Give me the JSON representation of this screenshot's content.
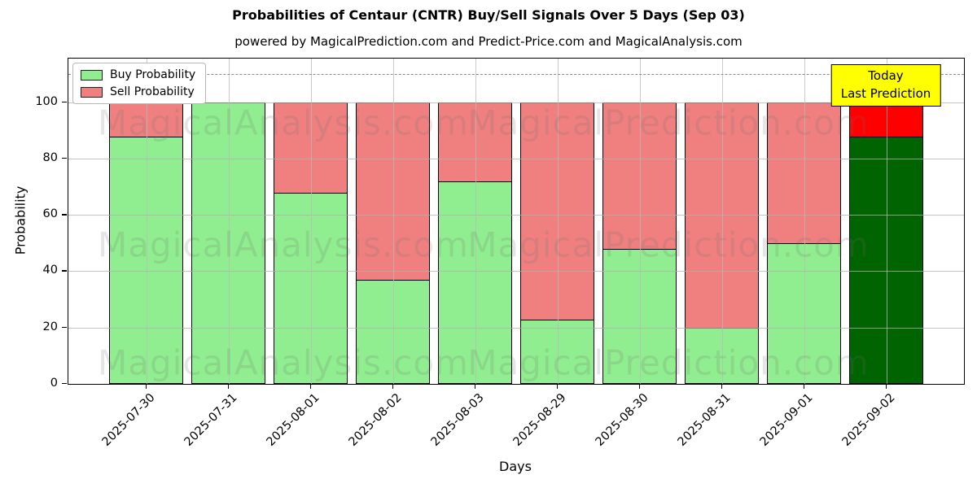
{
  "title": "Probabilities of Centaur (CNTR) Buy/Sell Signals Over 5 Days (Sep 03)",
  "subtitle": "powered by MagicalPrediction.com and Predict-Price.com and MagicalAnalysis.com",
  "watermarks": {
    "left_text": "MagicalAnalysis.com",
    "right_text": "MagicalPrediction.com"
  },
  "legend": {
    "items": [
      {
        "label": "Buy Probability",
        "color": "#90ee90"
      },
      {
        "label": "Sell Probability",
        "color": "#f08080"
      }
    ]
  },
  "annotation": {
    "line1": "Today",
    "line2": "Last Prediction",
    "bg_color": "#ffff00"
  },
  "axes": {
    "xlabel": "Days",
    "ylabel": "Probability",
    "yticks": [
      0,
      20,
      40,
      60,
      80,
      100
    ],
    "ylim": [
      0,
      115.5
    ],
    "dashed_line_y": 110,
    "grid": true
  },
  "chart_data": {
    "type": "bar",
    "stacked": true,
    "title": "Probabilities of Centaur (CNTR) Buy/Sell Signals Over 5 Days (Sep 03)",
    "xlabel": "Days",
    "ylabel": "Probability",
    "ylim": [
      0,
      115.5
    ],
    "legend_position": "upper left",
    "categories": [
      "2025-07-30",
      "2025-07-31",
      "2025-08-01",
      "2025-08-02",
      "2025-08-03",
      "2025-08-29",
      "2025-08-30",
      "2025-08-31",
      "2025-09-01",
      "2025-09-02"
    ],
    "series": [
      {
        "name": "Buy Probability",
        "color": "#90ee90",
        "values": [
          88,
          100,
          68,
          37,
          72,
          23,
          48,
          20,
          50,
          88
        ]
      },
      {
        "name": "Sell Probability",
        "color": "#f08080",
        "values": [
          12,
          0,
          32,
          63,
          28,
          77,
          52,
          80,
          50,
          12
        ]
      }
    ],
    "last_bar_highlight": {
      "buy_color": "#006400",
      "sell_color": "#ff0000",
      "label": "Today / Last Prediction"
    },
    "bar_edge_color": "#000000"
  }
}
